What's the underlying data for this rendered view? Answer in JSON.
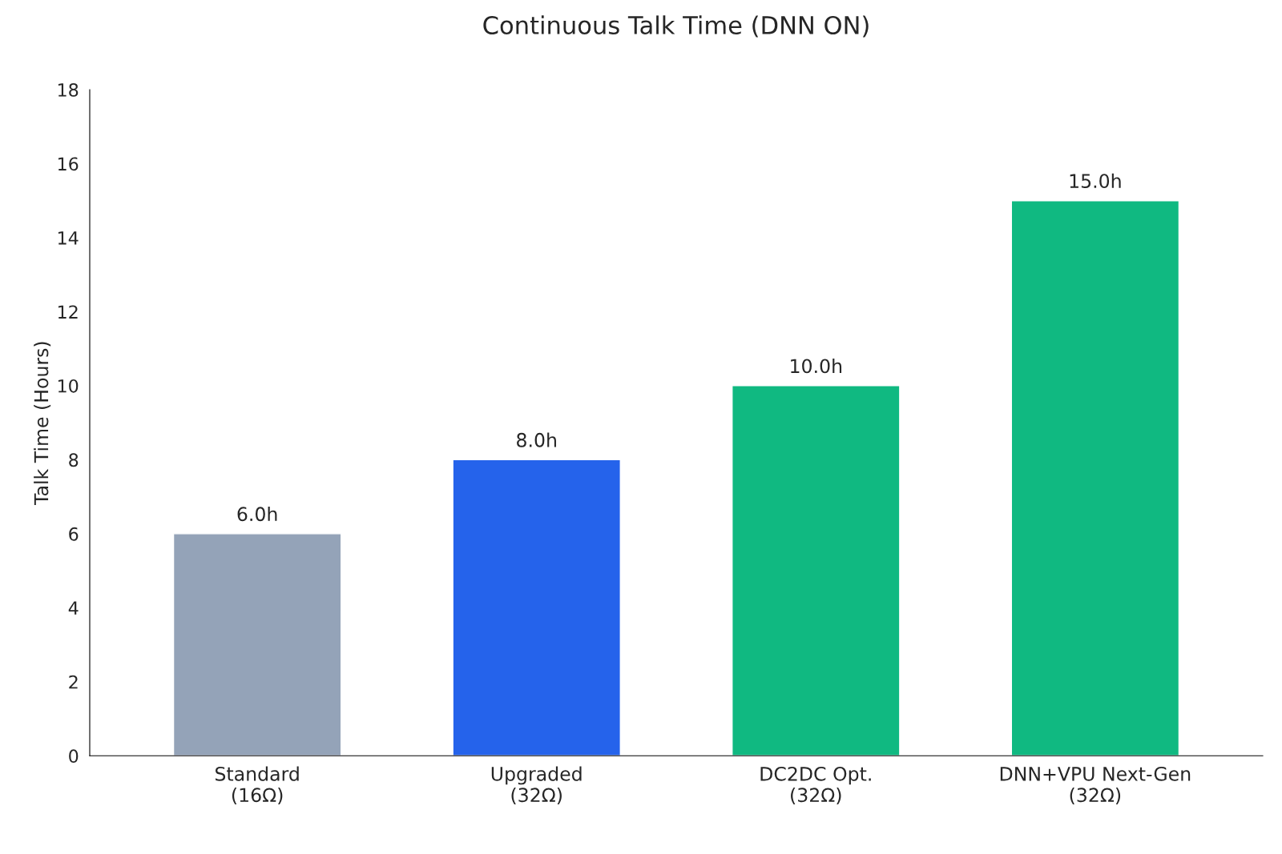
{
  "chart_data": {
    "type": "bar",
    "title": "Continuous Talk Time (DNN ON)",
    "ylabel": "Talk Time (Hours)",
    "categories": [
      "Standard\n(16Ω)",
      "Upgraded\n(32Ω)",
      "DC2DC Opt.\n(32Ω)",
      "DNN+VPU Next-Gen\n(32Ω)"
    ],
    "values": [
      6,
      8,
      10,
      15
    ],
    "colors": [
      "#94a3b8",
      "#2563eb",
      "#10b981",
      "#10b981"
    ],
    "value_labels": [
      "6.0h",
      "8.0h",
      "10.0h",
      "15.0h"
    ],
    "ylim": [
      0,
      18
    ],
    "yticks": [
      0,
      2,
      4,
      6,
      8,
      10,
      12,
      14,
      16,
      18
    ],
    "grid": false,
    "legend": false
  }
}
